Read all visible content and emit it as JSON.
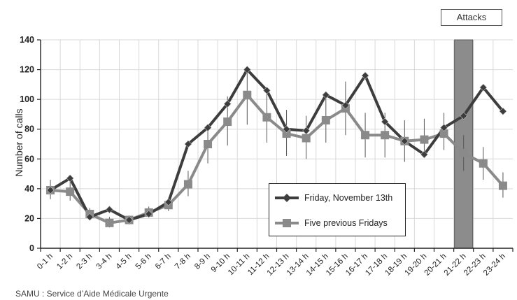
{
  "annotation": "Attacks",
  "source_note": "SAMU : Service d’Aide Médicale Urgente",
  "chart_data": {
    "type": "line",
    "title": "",
    "xlabel": "",
    "ylabel": "Number of calls",
    "ylim": [
      0,
      140
    ],
    "yticks": [
      0,
      20,
      40,
      60,
      80,
      100,
      120,
      140
    ],
    "grid": "vertical gridlines per category, horizontal gridlines per y tick",
    "legend_position": "lower-right of plot area",
    "highlight_band": {
      "label": "Attacks",
      "category": "21-22 h",
      "color": "#8c8c8c"
    },
    "categories": [
      "0-1 h",
      "1-2 h",
      "2-3 h",
      "3-4 h",
      "4-5 h",
      "5-6 h",
      "6-7 h",
      "7-8 h",
      "8-9 h",
      "9-10 h",
      "10-11 h",
      "11-12 h",
      "12-13 h",
      "13-14 h",
      "14-15 h",
      "15-16 h",
      "16-17 h",
      "17-18 h",
      "18-19 h",
      "19-20 h",
      "20-21 h",
      "21-22 h",
      "22-23 h",
      "23-24 h"
    ],
    "series": [
      {
        "name": "Friday, November 13th",
        "color": "#3d3d3d",
        "marker": "diamond",
        "values": [
          39,
          47,
          21,
          26,
          19,
          23,
          31,
          70,
          81,
          97,
          120,
          106,
          80,
          79,
          103,
          96,
          116,
          85,
          72,
          63,
          81,
          89,
          108,
          92
        ]
      },
      {
        "name": "Five previous Fridays",
        "color": "#8a8a8a",
        "marker": "square",
        "values": [
          39,
          38,
          23,
          17,
          19,
          24,
          29,
          43,
          70,
          85,
          103,
          88,
          77,
          74,
          86,
          94,
          76,
          76,
          72,
          73,
          77,
          64,
          57,
          42
        ],
        "error_low": [
          33,
          32,
          20,
          14,
          16,
          21,
          25,
          35,
          57,
          69,
          83,
          71,
          62,
          60,
          71,
          76,
          61,
          61,
          58,
          61,
          66,
          52,
          46,
          34
        ],
        "error_high": [
          46,
          45,
          27,
          21,
          22,
          28,
          34,
          52,
          83,
          102,
          121,
          105,
          93,
          89,
          102,
          112,
          91,
          91,
          86,
          87,
          91,
          76,
          68,
          51
        ]
      }
    ]
  }
}
